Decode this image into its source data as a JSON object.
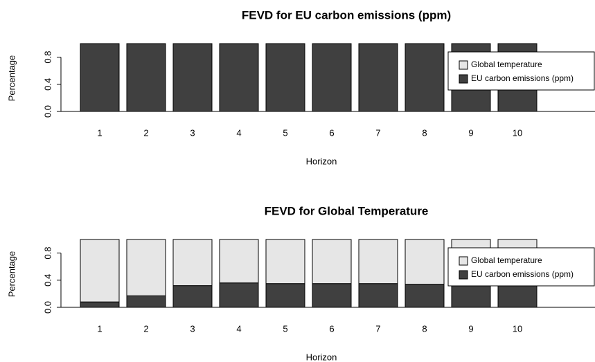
{
  "chart_data": [
    {
      "type": "bar",
      "stacked": true,
      "title": "FEVD for EU carbon emissions (ppm)",
      "xlabel": "Horizon",
      "ylabel": "Percentage",
      "categories": [
        "1",
        "2",
        "3",
        "4",
        "5",
        "6",
        "7",
        "8",
        "9",
        "10"
      ],
      "series": [
        {
          "name": "Global temperature",
          "color": "#e6e6e6",
          "values": [
            0,
            0,
            0,
            0,
            0,
            0,
            0,
            0,
            0,
            0
          ]
        },
        {
          "name": "EU carbon emissions (ppm)",
          "color": "#404040",
          "values": [
            1,
            1,
            1,
            1,
            1,
            1,
            1,
            1,
            1,
            1
          ]
        }
      ],
      "ylim": [
        0,
        1
      ],
      "yticks": [
        {
          "value": 0,
          "label": "0.0"
        },
        0.4,
        0.8
      ],
      "legend": "right"
    },
    {
      "type": "bar",
      "stacked": true,
      "title": "FEVD for Global Temperature",
      "xlabel": "Horizon",
      "ylabel": "Percentage",
      "categories": [
        "1",
        "2",
        "3",
        "4",
        "5",
        "6",
        "7",
        "8",
        "9",
        "10"
      ],
      "series": [
        {
          "name": "Global temperature",
          "color": "#e6e6e6",
          "values": [
            0.92,
            0.83,
            0.68,
            0.64,
            0.65,
            0.65,
            0.65,
            0.66,
            0.66,
            0.66
          ]
        },
        {
          "name": "EU carbon emissions (ppm)",
          "color": "#404040",
          "values": [
            0.08,
            0.17,
            0.32,
            0.36,
            0.35,
            0.35,
            0.35,
            0.34,
            0.34,
            0.34
          ]
        }
      ],
      "ylim": [
        0,
        1
      ],
      "yticks": [
        {
          "value": 0,
          "label": "0.0"
        },
        0.4,
        0.8
      ],
      "legend": "right"
    }
  ]
}
